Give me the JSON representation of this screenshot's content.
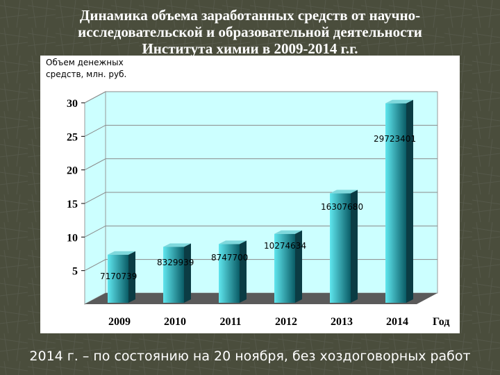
{
  "slide": {
    "title_lines": [
      "Динамика объема заработанных средств от научно-",
      "исследовательской и образовательной деятельности",
      "Института химии в 2009-2014 г.г."
    ],
    "footnote": "2014 г. – по состоянию на 20 ноября, без хоздоговорных работ"
  },
  "chart_data": {
    "type": "bar",
    "ylabel_lines": [
      "Объем денежных",
      "средств, млн. руб."
    ],
    "xlabel": "Год",
    "categories": [
      "2009",
      "2010",
      "2011",
      "2012",
      "2013",
      "2014"
    ],
    "values": [
      7.17,
      8.33,
      8.75,
      10.27,
      16.31,
      29.72
    ],
    "data_labels": [
      "7170739",
      "8329939",
      "8747700",
      "10274634",
      "16307680",
      "29723401"
    ],
    "yticks": [
      "5",
      "10",
      "15",
      "20",
      "25",
      "30"
    ],
    "ylim": [
      0,
      30
    ],
    "grid": true,
    "bar_3d": true,
    "colors": {
      "wall": "#ccffff",
      "floor": "#5a5a5a",
      "bar_light": "#5fe6ee",
      "bar_dark": "#0a5c66",
      "bar_side": "#0b3c44",
      "bar_top": "#7fd8dc"
    }
  }
}
